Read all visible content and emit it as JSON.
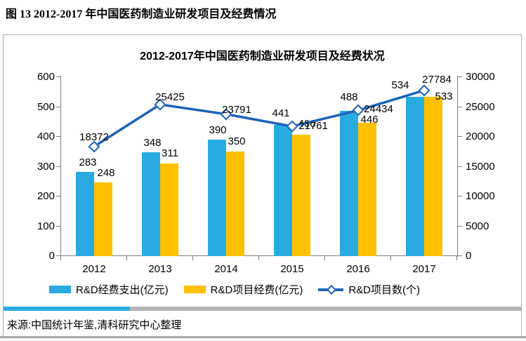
{
  "figure_caption": "图 13  2012-2017 年中国医药制造业研发项目及经费情况",
  "source": "来源:中国统计年鉴,清科研究中心整理",
  "colors": {
    "bar_blue": "#29ABE2",
    "bar_yellow": "#FFC000",
    "line_blue": "#1C63B7",
    "axis_gray": "#7f7f7f",
    "divider_gray": "#b3b3b3"
  },
  "chart_data": {
    "type": "bar",
    "title": "2012-2017年中国医药制造业研发项目及经费状况",
    "categories": [
      "2012",
      "2013",
      "2014",
      "2015",
      "2016",
      "2017"
    ],
    "series": [
      {
        "name": "R&D经费支出(亿元)",
        "type": "bar",
        "axis": "left",
        "color": "#29ABE2",
        "values": [
          283,
          348,
          390,
          441,
          488,
          534
        ]
      },
      {
        "name": "R&D项目经费(亿元)",
        "type": "bar",
        "axis": "left",
        "color": "#FFC000",
        "values": [
          248,
          311,
          350,
          406,
          446,
          533
        ]
      },
      {
        "name": "R&D项目数(个)",
        "type": "line",
        "axis": "right",
        "color": "#1C63B7",
        "values": [
          18372,
          25425,
          23791,
          21761,
          24434,
          27784
        ]
      }
    ],
    "left_axis": {
      "min": 0,
      "max": 600,
      "step": 100,
      "ticks": [
        0,
        100,
        200,
        300,
        400,
        500,
        600
      ]
    },
    "right_axis": {
      "min": 0,
      "max": 30000,
      "step": 5000,
      "ticks": [
        0,
        5000,
        10000,
        15000,
        20000,
        25000,
        30000
      ]
    },
    "grid": false,
    "legend_position": "bottom",
    "data_labels": true
  }
}
